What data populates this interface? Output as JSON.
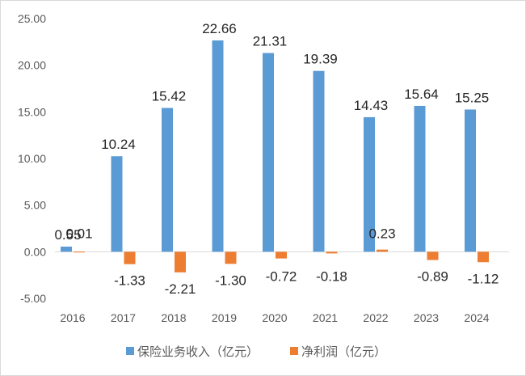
{
  "chart_data": {
    "type": "bar",
    "categories": [
      "2016",
      "2017",
      "2018",
      "2019",
      "2020",
      "2021",
      "2022",
      "2023",
      "2024"
    ],
    "series": [
      {
        "name": "保险业务收入（亿元）",
        "color": "#5b9bd5",
        "values": [
          0.55,
          10.24,
          15.42,
          22.66,
          21.31,
          19.39,
          14.43,
          15.64,
          15.25
        ],
        "labels": [
          "0.55",
          "10.24",
          "15.42",
          "22.66",
          "21.31",
          "19.39",
          "14.43",
          "15.64",
          "15.25"
        ]
      },
      {
        "name": "净利润（亿元）",
        "color": "#ed7d31",
        "values": [
          0.01,
          -1.33,
          -2.21,
          -1.3,
          -0.72,
          -0.18,
          0.23,
          -0.89,
          -1.12
        ],
        "labels": [
          "0.01",
          "-1.33",
          "-2.21",
          "-1.30",
          "-0.72",
          "-0.18",
          "0.23",
          "-0.89",
          "-1.12"
        ]
      }
    ],
    "ylim": [
      -5,
      25
    ],
    "yticks": [
      "-5.00",
      "0.00",
      "5.00",
      "10.00",
      "15.00",
      "20.00",
      "25.00"
    ],
    "ytick_values": [
      -5,
      0,
      5,
      10,
      15,
      20,
      25
    ],
    "grid": false,
    "legend": "bottom"
  }
}
